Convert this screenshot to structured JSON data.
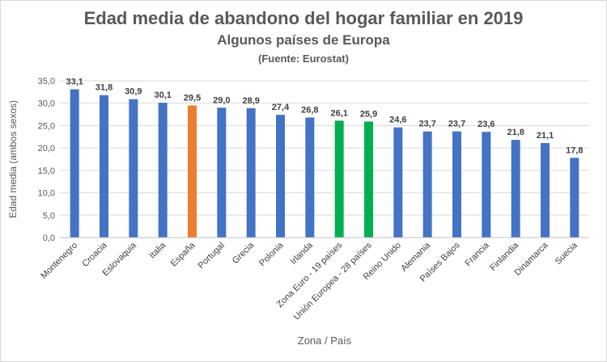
{
  "chart_data": {
    "type": "bar",
    "title": "Edad media de abandono del hogar familiar  en 2019",
    "subtitle": "Algunos países de Europa",
    "source": "(Fuente: Eurostat)",
    "xlabel": "Zona / País",
    "ylabel": "Edad media (ambos sexos)",
    "ylim": [
      0,
      35
    ],
    "ytick_step": 5,
    "ytick_labels": [
      "0,0",
      "5,0",
      "10,0",
      "15,0",
      "20,0",
      "25,0",
      "30,0",
      "35,0"
    ],
    "grid": true,
    "categories": [
      "Montenegro",
      "Croacia",
      "Eslovaquia",
      "Italia",
      "España",
      "Portugal",
      "Grecia",
      "Polonia",
      "Irlanda",
      "Zona Euro - 19 países",
      "Unión Europea - 28 países",
      "Reino Unido",
      "Alemania",
      "Países Bajos",
      "Francia",
      "Finlandia",
      "Dinamarca",
      "Suecia"
    ],
    "values": [
      33.1,
      31.8,
      30.9,
      30.1,
      29.5,
      29.0,
      28.9,
      27.4,
      26.8,
      26.1,
      25.9,
      24.6,
      23.7,
      23.7,
      23.6,
      21.8,
      21.1,
      17.8
    ],
    "value_labels": [
      "33,1",
      "31,8",
      "30,9",
      "30,1",
      "29,5",
      "29,0",
      "28,9",
      "27,4",
      "26,8",
      "26,1",
      "25,9",
      "24,6",
      "23,7",
      "23,7",
      "23,6",
      "21,8",
      "21,1",
      "17,8"
    ],
    "bar_colors": [
      "#4472c4",
      "#4472c4",
      "#4472c4",
      "#4472c4",
      "#ed7d31",
      "#4472c4",
      "#4472c4",
      "#4472c4",
      "#4472c4",
      "#00b050",
      "#00b050",
      "#4472c4",
      "#4472c4",
      "#4472c4",
      "#4472c4",
      "#4472c4",
      "#4472c4",
      "#4472c4"
    ]
  }
}
